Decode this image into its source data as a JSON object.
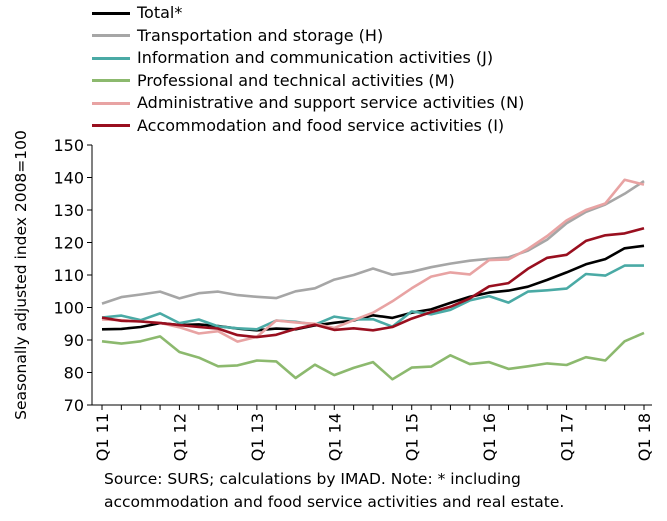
{
  "chart_data": {
    "type": "line",
    "title": "",
    "ylabel": "Seasonally adjusted index 2008=100",
    "xlabel": "",
    "ylim": [
      70,
      150
    ],
    "yticks": [
      70,
      80,
      90,
      100,
      110,
      120,
      130,
      140,
      150
    ],
    "categories": [
      "Q1 11",
      "Q2 11",
      "Q3 11",
      "Q4 11",
      "Q1 12",
      "Q2 12",
      "Q3 12",
      "Q4 12",
      "Q1 13",
      "Q2 13",
      "Q3 13",
      "Q4 13",
      "Q1 14",
      "Q2 14",
      "Q3 14",
      "Q4 14",
      "Q1 15",
      "Q2 15",
      "Q3 15",
      "Q4 15",
      "Q1 16",
      "Q2 16",
      "Q3 16",
      "Q4 16",
      "Q1 17",
      "Q2 17",
      "Q3 17",
      "Q4 17",
      "Q1 18"
    ],
    "tick_labels": [
      "Q1 11",
      "Q1 12",
      "Q1 13",
      "Q1 14",
      "Q1 15",
      "Q1 16",
      "Q1 17",
      "Q1 18"
    ],
    "grid": false,
    "legend_position": "top",
    "series": [
      {
        "name": "Total*",
        "color": "#000000",
        "values": [
          93.3,
          93.4,
          94.0,
          95.2,
          94.6,
          94.8,
          94.3,
          93.5,
          93.0,
          93.5,
          93.3,
          94.5,
          95.3,
          96.0,
          97.6,
          96.8,
          98.4,
          99.4,
          101.4,
          103.3,
          104.6,
          105.2,
          106.4,
          108.5,
          110.8,
          113.3,
          114.9,
          118.2,
          119.0
        ]
      },
      {
        "name": "Transportation and storage (H)",
        "color": "#a6a6a6",
        "values": [
          101.2,
          103.2,
          104.0,
          104.9,
          102.8,
          104.4,
          104.9,
          103.8,
          103.3,
          102.9,
          105.0,
          105.9,
          108.6,
          110.0,
          112.0,
          110.1,
          111.0,
          112.4,
          113.5,
          114.4,
          115.0,
          115.4,
          117.5,
          120.9,
          125.9,
          129.4,
          131.7,
          135.0,
          138.9
        ]
      },
      {
        "name": "Information and communication activities (J)",
        "color": "#4aaaa5",
        "values": [
          96.9,
          97.5,
          96.1,
          98.2,
          95.2,
          96.3,
          94.2,
          93.6,
          93.3,
          96.0,
          95.6,
          94.7,
          97.2,
          96.3,
          96.4,
          94.1,
          98.8,
          97.9,
          99.3,
          102.2,
          103.5,
          101.5,
          104.9,
          105.3,
          105.8,
          110.3,
          109.8,
          112.9,
          112.9
        ]
      },
      {
        "name": "Professional and technical activities (M)",
        "color": "#8cb96e",
        "values": [
          89.6,
          88.9,
          89.6,
          91.1,
          86.3,
          84.6,
          81.9,
          82.2,
          83.7,
          83.4,
          78.3,
          82.4,
          79.2,
          81.4,
          83.2,
          77.9,
          81.5,
          81.8,
          85.3,
          82.6,
          83.2,
          81.1,
          81.9,
          82.8,
          82.3,
          84.7,
          83.7,
          89.6,
          92.2
        ]
      },
      {
        "name": "Administrative and support service activities (N)",
        "color": "#e8a3a3",
        "values": [
          96.3,
          96.1,
          95.7,
          95.3,
          93.9,
          92.0,
          92.7,
          89.5,
          91.0,
          96.0,
          95.4,
          95.0,
          93.7,
          96.1,
          98.4,
          101.9,
          105.9,
          109.5,
          110.8,
          110.2,
          114.6,
          114.8,
          118.0,
          122.0,
          126.8,
          130.0,
          132.0,
          139.3,
          137.8
        ]
      },
      {
        "name": "Accommodation and food service activities (I)",
        "color": "#990f1f",
        "values": [
          96.9,
          95.9,
          95.7,
          95.2,
          94.6,
          94.0,
          93.5,
          91.5,
          90.9,
          91.6,
          93.4,
          94.7,
          93.1,
          93.6,
          93.0,
          94.0,
          96.6,
          98.6,
          100.2,
          102.8,
          106.5,
          107.5,
          111.9,
          115.3,
          116.2,
          120.5,
          122.2,
          122.8,
          124.4
        ]
      }
    ]
  },
  "source_line1": "Source:  SURS; calculations by IMAD. Note: * including",
  "source_line2": "accommodation and food service activities and real estate."
}
